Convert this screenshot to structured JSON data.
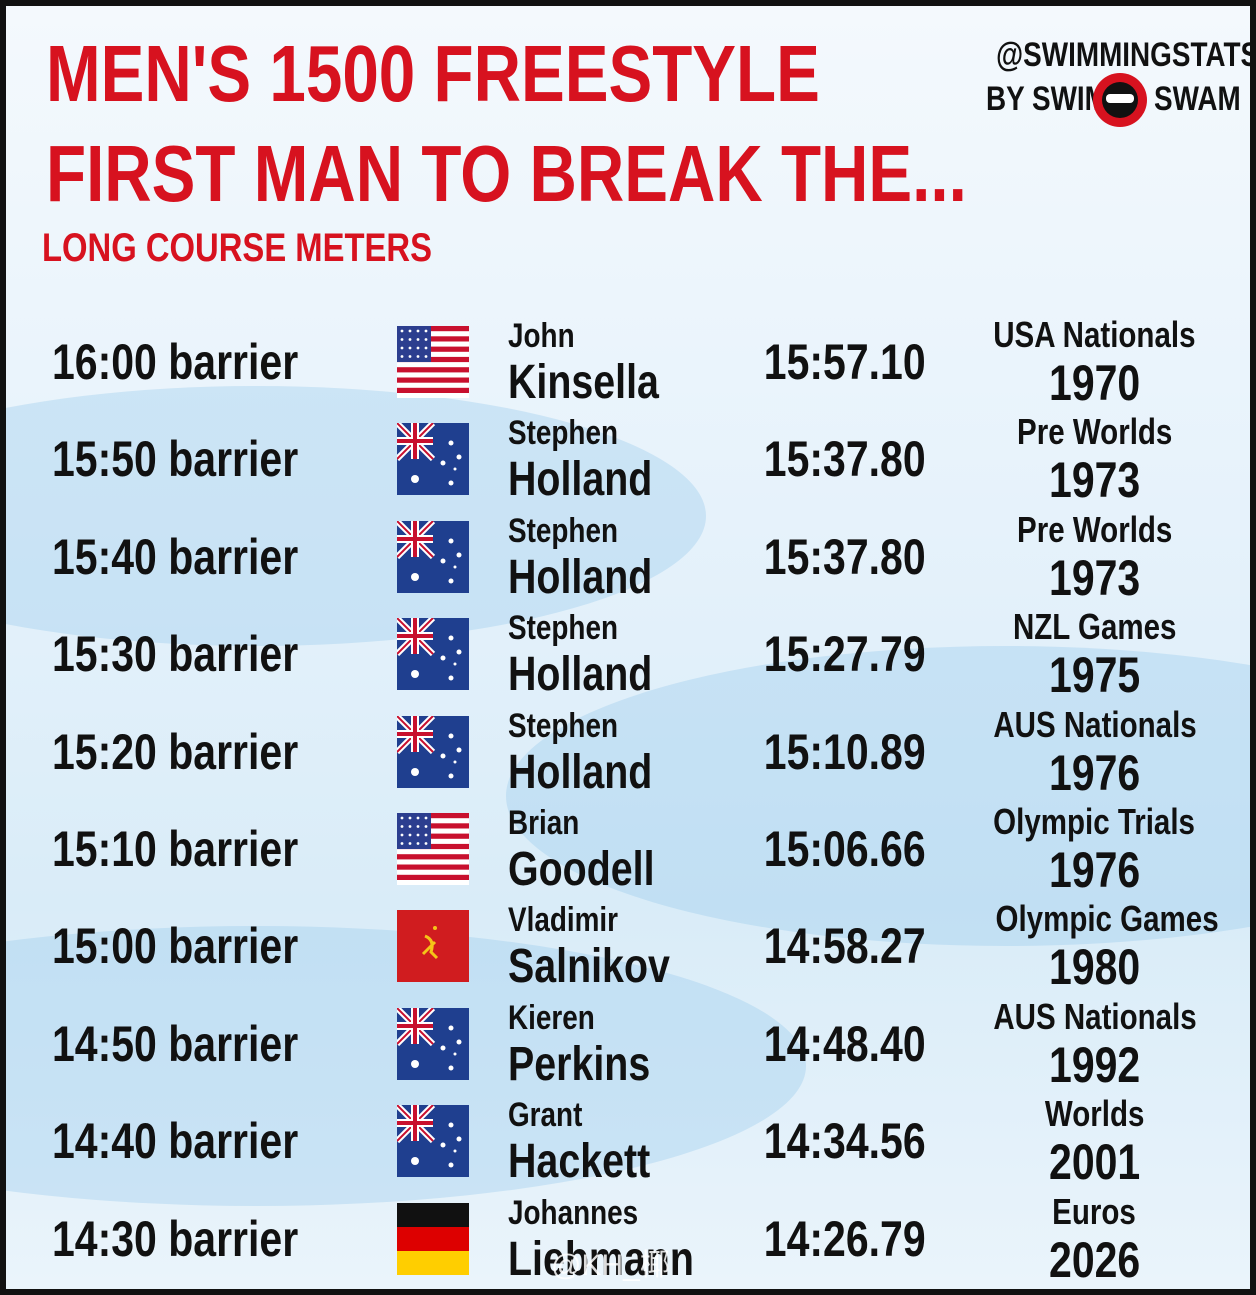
{
  "header": {
    "title_lines": [
      "MEN'S 1500 FREESTYLE",
      "FIRST MAN TO BREAK THE..."
    ],
    "subtitle": "LONG COURSE METERS",
    "brand_handle": "@SWIMMINGSTATS",
    "brand_left": "BY SWIM",
    "brand_right": "SWAM"
  },
  "table": {
    "rows": [
      [
        "16:00 barrier",
        "John",
        "Kinsella",
        "15:57.10",
        "USA Nationals",
        "1970"
      ],
      [
        "15:50 barrier",
        "Stephen",
        "Holland",
        "15:37.80",
        "Pre Worlds",
        "1973"
      ],
      [
        "15:40 barrier",
        "Stephen",
        "Holland",
        "15:37.80",
        "Pre Worlds",
        "1973"
      ],
      [
        "15:30 barrier",
        "Stephen",
        "Holland",
        "15:27.79",
        "NZL Games",
        "1975"
      ],
      [
        "15:20 barrier",
        "Stephen",
        "Holland",
        "15:10.89",
        "AUS Nationals",
        "1976"
      ],
      [
        "15:10 barrier",
        "Brian",
        "Goodell",
        "15:06.66",
        "Olympic Trials",
        "1976"
      ],
      [
        "15:00 barrier",
        "Vladimir",
        "Salnikov",
        "14:58.27",
        "Olympic Games",
        "1980"
      ],
      [
        "14:50 barrier",
        "Kieren",
        "Perkins",
        "14:48.40",
        "AUS Nationals",
        "1992"
      ],
      [
        "14:40 barrier",
        "Grant",
        "Hackett",
        "14:34.56",
        "Worlds",
        "2001"
      ],
      [
        "14:30 barrier",
        "Johannes",
        "Liebmann",
        "14:26.79",
        "Euros",
        "2026"
      ]
    ]
  },
  "watermark": "@KH_椰"
}
